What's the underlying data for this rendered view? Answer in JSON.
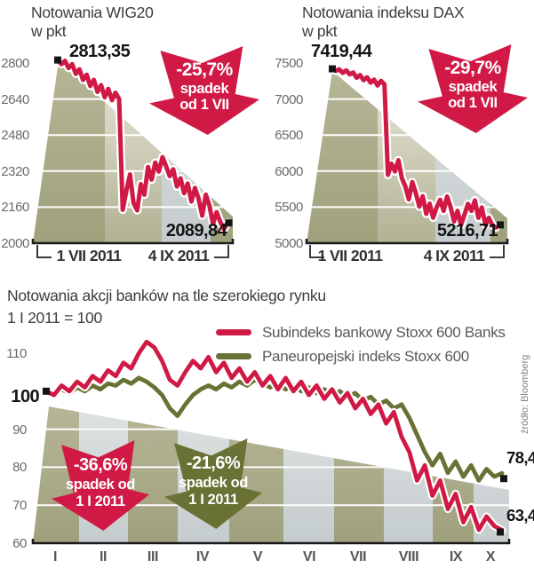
{
  "colors": {
    "red": "#d01a45",
    "olive": "#6a7134",
    "band_khaki": "#a9aa88",
    "band_beige": "#d9d8c5",
    "band_grey": "#ccd2d3",
    "axis_black": "#1a1a1a",
    "text_dark": "#3c3d3f",
    "tick_grey": "#6a6b6d",
    "badge_text": "#ffffff"
  },
  "chart_data": [
    {
      "type": "line",
      "title": "Notowania WIG20",
      "unit_label": "w pkt",
      "start_label": "2813,35",
      "end_label": "2089,84",
      "ylim": [
        2000,
        2800
      ],
      "yticks": [
        2800,
        2640,
        2480,
        2320,
        2160,
        2000
      ],
      "gridlines": [
        2640,
        2480,
        2320,
        2160
      ],
      "xticks": [
        "1 VII 2011",
        "4 IX 2011"
      ],
      "badge": {
        "pct": "-25,7%",
        "line2": "spadek",
        "line3": "od 1 VII",
        "color": "#d01a45"
      },
      "series_color": "#d01a45",
      "values": [
        2813.35,
        2795,
        2810,
        2778,
        2795,
        2752,
        2772,
        2725,
        2748,
        2698,
        2725,
        2672,
        2702,
        2648,
        2685,
        2635,
        2668,
        2640,
        2148,
        2232,
        2305,
        2178,
        2146,
        2262,
        2215,
        2338,
        2282,
        2358,
        2318,
        2382,
        2342,
        2298,
        2328,
        2252,
        2288,
        2222,
        2265,
        2185,
        2245,
        2198,
        2122,
        2215,
        2168,
        2085,
        2138,
        2095,
        2062,
        2089.84
      ]
    },
    {
      "type": "line",
      "title": "Notowania indeksu DAX",
      "unit_label": "w pkt",
      "start_label": "7419,44",
      "end_label": "5216,71",
      "ylim": [
        5000,
        7500
      ],
      "yticks": [
        7500,
        7000,
        6500,
        6000,
        5500,
        5000
      ],
      "gridlines": [
        7000,
        6500,
        6000,
        5500
      ],
      "xticks": [
        "1 VII 2011",
        "4 IX 2011"
      ],
      "badge": {
        "pct": "-29,7%",
        "line2": "spadek",
        "line3": "od 1 VII",
        "color": "#d01a45"
      },
      "series_color": "#d01a45",
      "values": [
        7419.44,
        7392,
        7412,
        7365,
        7398,
        7342,
        7368,
        7295,
        7332,
        7262,
        7302,
        7228,
        7268,
        7188,
        7252,
        7205,
        5948,
        6102,
        5995,
        6152,
        5902,
        5788,
        5608,
        5848,
        5695,
        5508,
        5652,
        5408,
        5548,
        5352,
        5498,
        5602,
        5448,
        5648,
        5502,
        5302,
        5448,
        5252,
        5398,
        5545,
        5448,
        5595,
        5352,
        5495,
        5255,
        5352,
        5248,
        5216.71
      ]
    },
    {
      "type": "line",
      "title": "Notowania akcji banków na tle szerokiego rynku",
      "subtitle": "1 I 2011 = 100",
      "start_label": "100",
      "ylim": [
        60,
        110
      ],
      "yticks": [
        110,
        90,
        80,
        70,
        60
      ],
      "gridlines": [
        90,
        80,
        70
      ],
      "xticks": [
        "I",
        "II",
        "III",
        "IV",
        "V",
        "VI",
        "VII",
        "VIII",
        "IX",
        "X"
      ],
      "legend": [
        {
          "label": "Subindeks bankowy Stoxx 600 Banks",
          "color": "#d01a45"
        },
        {
          "label": "Paneuropejski indeks Stoxx 600",
          "color": "#6a7134"
        }
      ],
      "badges": [
        {
          "pct": "-36,6%",
          "line2": "spadek od",
          "line3": "1 I 2011",
          "color": "#d01a45"
        },
        {
          "pct": "-21,6%",
          "line2": "spadek od",
          "line3": "1 I 2011",
          "color": "#6a7134"
        }
      ],
      "series": [
        {
          "name": "Paneuropejski indeks Stoxx 600",
          "color": "#6a7134",
          "end_label": "78,4",
          "values": [
            100,
            99.5,
            100.5,
            99.5,
            101,
            100,
            101.5,
            100.5,
            102,
            101.5,
            103,
            102,
            103.5,
            102.5,
            101,
            99,
            95.5,
            93.5,
            96.5,
            99,
            100.5,
            101.5,
            100.5,
            102,
            101,
            102.5,
            101.5,
            103,
            102,
            101,
            102,
            100.5,
            101.5,
            100,
            101,
            99.5,
            100.5,
            99,
            100,
            98.5,
            99.5,
            97.5,
            98.5,
            96.5,
            97.5,
            95.5,
            96.5,
            93,
            88.5,
            84,
            80.5,
            83.5,
            78.5,
            81.5,
            77.5,
            80.5,
            76.5,
            79.5,
            77.5,
            78.4
          ]
        },
        {
          "name": "Subindeks bankowy Stoxx 600 Banks",
          "color": "#d01a45",
          "end_label": "63,4",
          "values": [
            100,
            99,
            101.5,
            100,
            102.5,
            101,
            104,
            102.5,
            105.5,
            104,
            107.5,
            106,
            110,
            113,
            111.5,
            108,
            103,
            101.5,
            105,
            108,
            106,
            109,
            105,
            107.5,
            103.5,
            106,
            102.5,
            105,
            101.5,
            104,
            100.5,
            103.5,
            100,
            102.5,
            99,
            101.5,
            98,
            100.5,
            97,
            99.5,
            95.5,
            98,
            94,
            96.5,
            91.5,
            94.5,
            88,
            84,
            76.5,
            80.5,
            72.5,
            76.5,
            69,
            73,
            65.5,
            69.5,
            63.5,
            67,
            64.5,
            63.4
          ]
        }
      ],
      "source_note": "źródło: Bloomberg"
    }
  ]
}
